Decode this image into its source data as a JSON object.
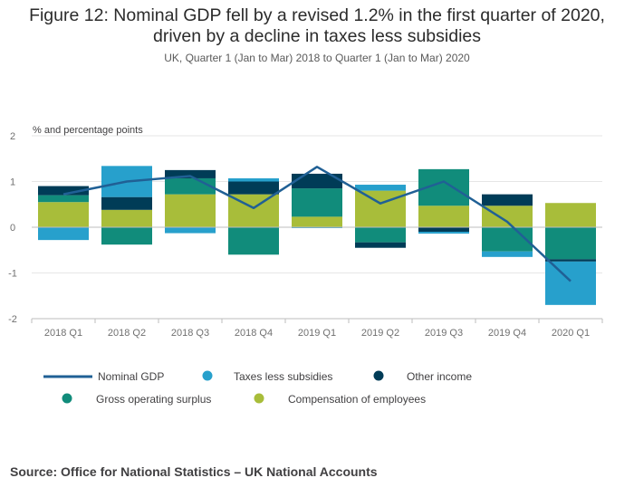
{
  "title_line1": "Figure 12: Nominal GDP fell by a revised 1.2% in the first quarter of 2020,",
  "title_line2": "driven by a decline in taxes less subsidies",
  "subtitle": "UK, Quarter 1 (Jan to Mar) 2018 to Quarter 1 (Jan to Mar) 2020",
  "source": "Source: Office for National Statistics – UK National Accounts",
  "chart_data": {
    "type": "bar",
    "stacked": true,
    "ylabel": "% and percentage points",
    "ylim": [
      -2,
      2
    ],
    "yticks": [
      "2",
      "1",
      "0",
      "-1",
      "-2"
    ],
    "ytick_values": [
      2,
      1,
      0,
      -1,
      -2
    ],
    "grid": true,
    "legend_position": "bottom",
    "categories": [
      "2018 Q1",
      "2018 Q2",
      "2018 Q3",
      "2018 Q4",
      "2019 Q1",
      "2019 Q2",
      "2019 Q3",
      "2019 Q4",
      "2020 Q1"
    ],
    "series": [
      {
        "name": "Compensation of employees",
        "color": "#a8bd3a",
        "values": [
          0.55,
          0.38,
          0.72,
          0.72,
          0.23,
          0.8,
          0.47,
          0.47,
          0.53
        ]
      },
      {
        "name": "Gross operating surplus",
        "color": "#118c7b",
        "values": [
          0.15,
          -0.38,
          0.35,
          -0.6,
          0.62,
          -0.33,
          0.8,
          -0.53,
          -0.7
        ]
      },
      {
        "name": "Other income",
        "color": "#003c57",
        "values": [
          0.2,
          0.28,
          0.18,
          0.28,
          0.32,
          -0.12,
          -0.1,
          0.25,
          -0.05
        ]
      },
      {
        "name": "Taxes less subsidies",
        "color": "#27a0cc",
        "values": [
          -0.28,
          0.68,
          -0.13,
          0.07,
          -0.02,
          0.13,
          -0.04,
          -0.12,
          -0.95
        ]
      }
    ],
    "line": {
      "name": "Nominal GDP",
      "color": "#206095",
      "values": [
        0.72,
        1.0,
        1.12,
        0.42,
        1.32,
        0.52,
        1.0,
        0.12,
        -1.18
      ]
    }
  }
}
